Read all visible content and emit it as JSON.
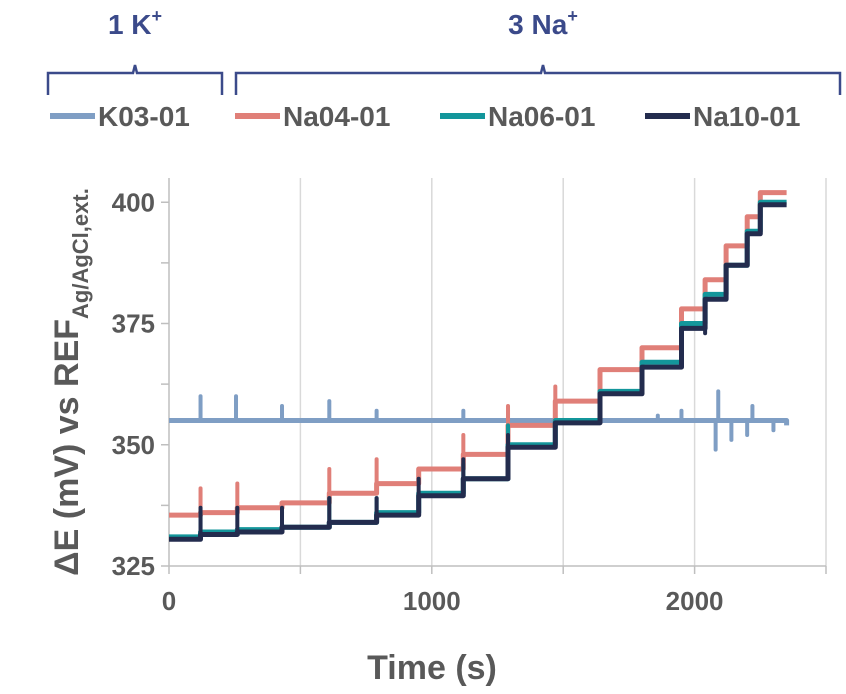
{
  "groups": [
    {
      "count": "1",
      "ion": "K",
      "charge": "+"
    },
    {
      "count": "3",
      "ion": "Na",
      "charge": "+"
    }
  ],
  "chart_data": {
    "type": "line",
    "xlabel": "Time (s)",
    "ylabel_main": "ΔE (mV) vs REF",
    "ylabel_sub": "Ag/AgCl,ext.",
    "xlim": [
      0,
      2500
    ],
    "ylim": [
      325,
      405
    ],
    "xticks": [
      0,
      1000,
      2000
    ],
    "yticks": [
      325,
      350,
      375,
      400
    ],
    "grid": "vertical",
    "legend_position": "top",
    "series": [
      {
        "name": "K03-01",
        "color": "#7f9ec4",
        "levels": [
          [
            0,
            355
          ],
          [
            2350,
            354
          ]
        ],
        "spikes": [
          [
            120,
            360
          ],
          [
            255,
            360
          ],
          [
            430,
            358
          ],
          [
            610,
            359
          ],
          [
            790,
            357
          ],
          [
            950,
            355
          ],
          [
            1120,
            357
          ],
          [
            1290,
            357
          ],
          [
            1470,
            356
          ],
          [
            1640,
            356
          ],
          [
            1860,
            356
          ],
          [
            1950,
            357
          ],
          [
            2080,
            349
          ],
          [
            2090,
            361
          ],
          [
            2140,
            351
          ],
          [
            2200,
            352
          ],
          [
            2220,
            358
          ],
          [
            2300,
            353
          ]
        ]
      },
      {
        "name": "Na04-01",
        "color": "#e07f78",
        "levels": [
          [
            0,
            335.5
          ],
          [
            120,
            336
          ],
          [
            260,
            337
          ],
          [
            430,
            338
          ],
          [
            610,
            340
          ],
          [
            790,
            342
          ],
          [
            950,
            345
          ],
          [
            1120,
            348
          ],
          [
            1290,
            354
          ],
          [
            1470,
            359
          ],
          [
            1640,
            365.5
          ],
          [
            1800,
            370
          ],
          [
            1950,
            378
          ],
          [
            2040,
            384
          ],
          [
            2120,
            391
          ],
          [
            2200,
            397
          ],
          [
            2250,
            402
          ]
        ],
        "spikes": [
          [
            120,
            341
          ],
          [
            260,
            342
          ],
          [
            610,
            345
          ],
          [
            790,
            347
          ],
          [
            1120,
            352
          ],
          [
            1290,
            358
          ],
          [
            1470,
            362
          ]
        ]
      },
      {
        "name": "Na06-01",
        "color": "#13969b",
        "levels": [
          [
            0,
            331
          ],
          [
            120,
            332
          ],
          [
            260,
            332.5
          ],
          [
            430,
            333
          ],
          [
            610,
            334
          ],
          [
            790,
            336
          ],
          [
            950,
            340
          ],
          [
            1120,
            343
          ],
          [
            1290,
            350
          ],
          [
            1470,
            355
          ],
          [
            1640,
            361
          ],
          [
            1800,
            367
          ],
          [
            1950,
            375
          ],
          [
            2040,
            381
          ],
          [
            2120,
            387
          ],
          [
            2200,
            394
          ],
          [
            2250,
            400
          ]
        ],
        "spikes": [
          [
            120,
            336
          ],
          [
            430,
            336
          ],
          [
            610,
            339
          ],
          [
            790,
            339
          ],
          [
            1120,
            346
          ],
          [
            1290,
            354
          ]
        ]
      },
      {
        "name": "Na10-01",
        "color": "#232c4e",
        "levels": [
          [
            0,
            330.5
          ],
          [
            120,
            331.5
          ],
          [
            260,
            332
          ],
          [
            430,
            333
          ],
          [
            610,
            334
          ],
          [
            790,
            335.5
          ],
          [
            950,
            339.5
          ],
          [
            1120,
            343
          ],
          [
            1290,
            349.5
          ],
          [
            1470,
            354.5
          ],
          [
            1640,
            360.5
          ],
          [
            1800,
            366
          ],
          [
            1950,
            374
          ],
          [
            2040,
            380
          ],
          [
            2120,
            387
          ],
          [
            2200,
            393.5
          ],
          [
            2250,
            399.5
          ]
        ],
        "spikes": [
          [
            120,
            337
          ],
          [
            260,
            337
          ],
          [
            430,
            337
          ],
          [
            610,
            339
          ],
          [
            790,
            339
          ],
          [
            950,
            343
          ],
          [
            1120,
            347
          ],
          [
            1290,
            352
          ],
          [
            1800,
            363
          ],
          [
            1950,
            368
          ],
          [
            2040,
            373
          ],
          [
            2120,
            381
          ],
          [
            2200,
            388
          ]
        ]
      }
    ]
  }
}
